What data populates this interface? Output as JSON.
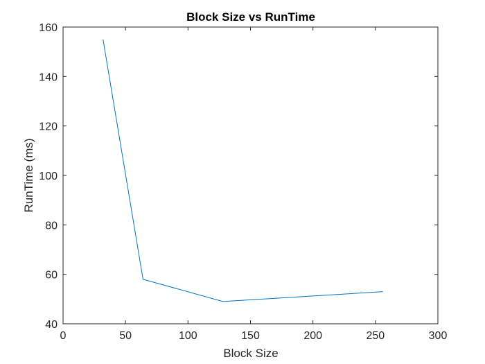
{
  "chart_data": {
    "type": "line",
    "title": "Block Size vs RunTime",
    "xlabel": "Block Size",
    "ylabel": "RunTime (ms)",
    "xlim": [
      0,
      300
    ],
    "ylim": [
      40,
      160
    ],
    "xticks": [
      0,
      50,
      100,
      150,
      200,
      250,
      300
    ],
    "yticks": [
      40,
      60,
      80,
      100,
      120,
      140,
      160
    ],
    "grid": false,
    "series": [
      {
        "color": "#0072BD",
        "x": [
          32,
          64,
          128,
          256
        ],
        "y": [
          155,
          58,
          49,
          53
        ]
      }
    ]
  }
}
